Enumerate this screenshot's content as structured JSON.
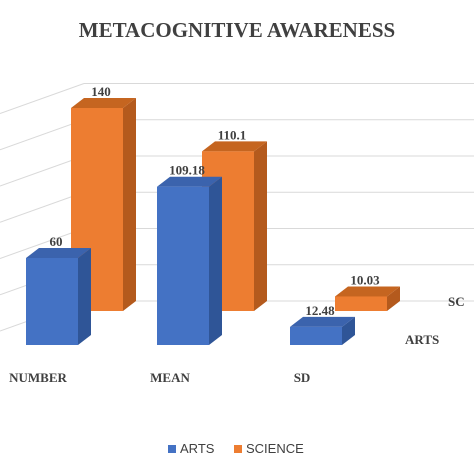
{
  "chart_data": {
    "type": "bar",
    "title": "METACOGNITIVE AWARENESS",
    "categories": [
      "NUMBER",
      "MEAN",
      "SD"
    ],
    "series": [
      {
        "name": "ARTS",
        "values": [
          60,
          109.18,
          12.48
        ],
        "labels": [
          "60",
          "109.18",
          "12.48"
        ],
        "depth_label": "ARTS"
      },
      {
        "name": "SCIENCE",
        "values": [
          140,
          110.1,
          10.03
        ],
        "labels": [
          "140",
          "110.1",
          "10.03"
        ],
        "depth_label": "SC"
      }
    ],
    "ylim": [
      0,
      150
    ],
    "grid": true,
    "legend_position": "bottom",
    "colors": {
      "arts_front": "#4472C4",
      "arts_side": "#2F5597",
      "arts_top": "#3B63AD",
      "science_front": "#ED7D31",
      "science_side": "#B45A1D",
      "science_top": "#C56520",
      "grid": "#D9D9D9",
      "text": "#404040"
    }
  }
}
